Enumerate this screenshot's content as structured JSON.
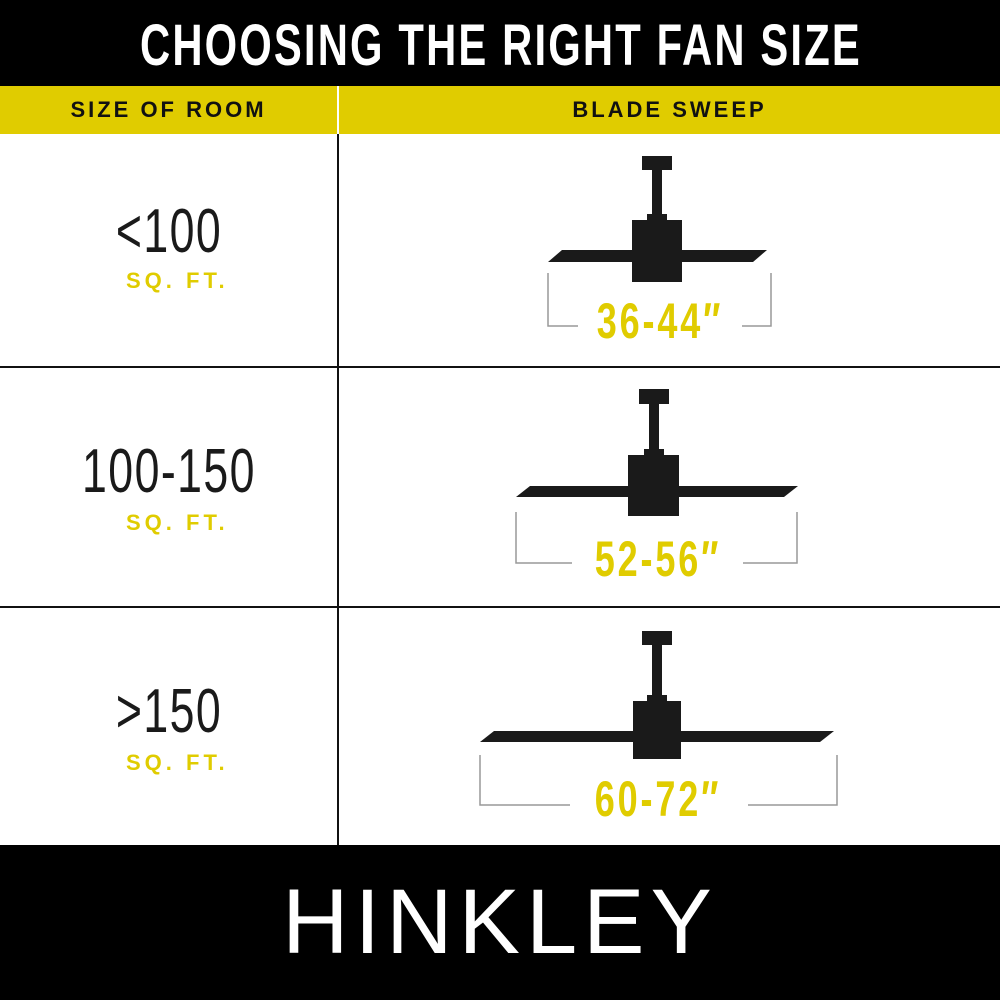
{
  "title": "CHOOSING THE RIGHT FAN SIZE",
  "header": {
    "col1": "SIZE OF ROOM",
    "col2": "BLADE SWEEP"
  },
  "rows": [
    {
      "size": "<100",
      "unit": "SQ. FT.",
      "sweep": "36-44″"
    },
    {
      "size": "100-150",
      "unit": "SQ. FT.",
      "sweep": "52-56″"
    },
    {
      "size": ">150",
      "unit": "SQ. FT.",
      "sweep": "60-72″"
    }
  ],
  "brand": "HINKLEY",
  "colors": {
    "accent": "#e0cc00",
    "dark": "#1a1a1a",
    "background": "#ffffff"
  }
}
